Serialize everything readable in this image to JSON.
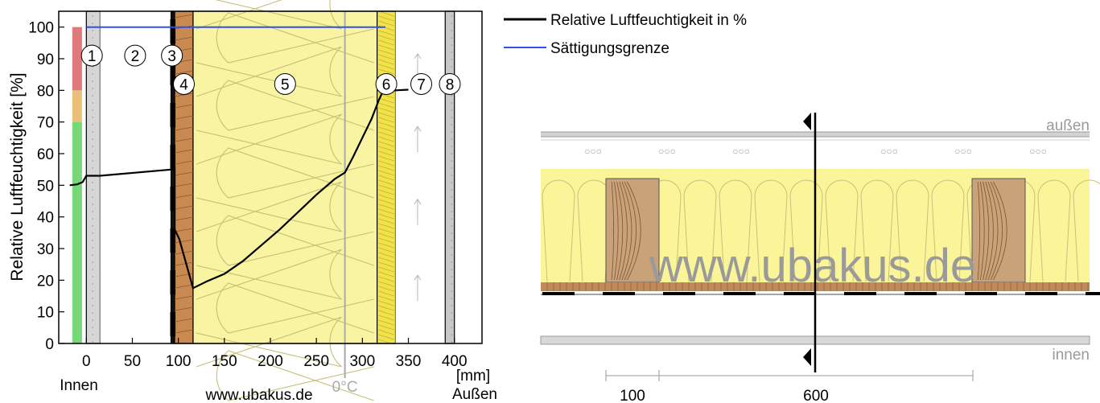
{
  "chart_data": [
    {
      "type": "line",
      "ylabel": "Relative Luftfeuchtigkeit [%]",
      "xlabel": "[mm]",
      "xlim": [
        -30,
        430
      ],
      "ylim": [
        0,
        105
      ],
      "x_ticks": [
        "0",
        "50",
        "100",
        "150",
        "200",
        "250",
        "300",
        "350",
        "400"
      ],
      "x_tick_values": [
        0,
        50,
        100,
        150,
        200,
        250,
        300,
        350,
        400
      ],
      "y_ticks": [
        "0",
        "10",
        "20",
        "30",
        "40",
        "50",
        "60",
        "70",
        "80",
        "90",
        "100"
      ],
      "y_tick_values": [
        0,
        10,
        20,
        30,
        40,
        50,
        60,
        70,
        80,
        90,
        100
      ],
      "left_label": "Innen",
      "right_label": "Außen",
      "watermark": "www.ubakus.de",
      "zero_degree_label": "0°C",
      "zero_degree_x": 281,
      "comfort_bar": {
        "x": -10,
        "segments": [
          {
            "from": 0,
            "to": 70,
            "color": "#78d878"
          },
          {
            "from": 70,
            "to": 80,
            "color": "#e8c078"
          },
          {
            "from": 80,
            "to": 100,
            "color": "#e07a7a"
          }
        ]
      },
      "layers": [
        {
          "id": "1",
          "from": 0,
          "to": 15,
          "label_x": 6,
          "label_y": 91,
          "fill": "#d6d6d6"
        },
        {
          "id": "2",
          "from": 15,
          "to": 92,
          "label_x": 53,
          "label_y": 91,
          "fill": "#ffffff"
        },
        {
          "id": "3",
          "from": 92,
          "to": 96,
          "label_x": 93,
          "label_y": 91,
          "fill": "#111111"
        },
        {
          "id": "4",
          "from": 96,
          "to": 116,
          "label_x": 106,
          "label_y": 82,
          "fill": "#c98a52"
        },
        {
          "id": "5",
          "from": 116,
          "to": 316,
          "label_x": 216,
          "label_y": 82,
          "fill": "#f8f4a2"
        },
        {
          "id": "6",
          "from": 316,
          "to": 336,
          "label_x": 326,
          "label_y": 82,
          "fill": "#f0e24a"
        },
        {
          "id": "7",
          "from": 336,
          "to": 390,
          "label_x": 364,
          "label_y": 82,
          "fill": "#ffffff"
        },
        {
          "id": "8",
          "from": 390,
          "to": 400,
          "label_x": 395,
          "label_y": 82,
          "fill": "#c8c8c8"
        }
      ],
      "series": [
        {
          "name": "Relative Luftfeuchtigkeit in %",
          "color": "#000000",
          "points": [
            [
              -18,
              50
            ],
            [
              -10,
              50.3
            ],
            [
              -4,
              51
            ],
            [
              0,
              53
            ],
            [
              15,
              53
            ],
            [
              93,
              55
            ],
            [
              96,
              55
            ],
            [
              96,
              36
            ],
            [
              101,
              33
            ],
            [
              116,
              17.5
            ],
            [
              130,
              19.5
            ],
            [
              150,
              22
            ],
            [
              170,
              26
            ],
            [
              190,
              31
            ],
            [
              210,
              36
            ],
            [
              230,
              41.5
            ],
            [
              250,
              47
            ],
            [
              270,
              52
            ],
            [
              281,
              54
            ],
            [
              290,
              59
            ],
            [
              300,
              65
            ],
            [
              310,
              71
            ],
            [
              318,
              77
            ],
            [
              322,
              79.5
            ],
            [
              336,
              80
            ],
            [
              350,
              80.2
            ]
          ]
        },
        {
          "name": "Sättigungsgrenze",
          "color": "#3050ee",
          "points": [
            [
              0,
              100
            ],
            [
              325,
              100
            ]
          ]
        }
      ]
    },
    {
      "type": "diagram",
      "outside_label": "außen",
      "inside_label": "innen",
      "watermark": "www.ubakus.de",
      "dimensions": [
        {
          "value": "100"
        },
        {
          "value": "600"
        }
      ],
      "vent_dots": "○○○"
    }
  ],
  "legend": [
    {
      "label": "Relative Luftfeuchtigkeit in %",
      "color": "#000000"
    },
    {
      "label": "Sättigungsgrenze",
      "color": "#3050ee"
    }
  ]
}
